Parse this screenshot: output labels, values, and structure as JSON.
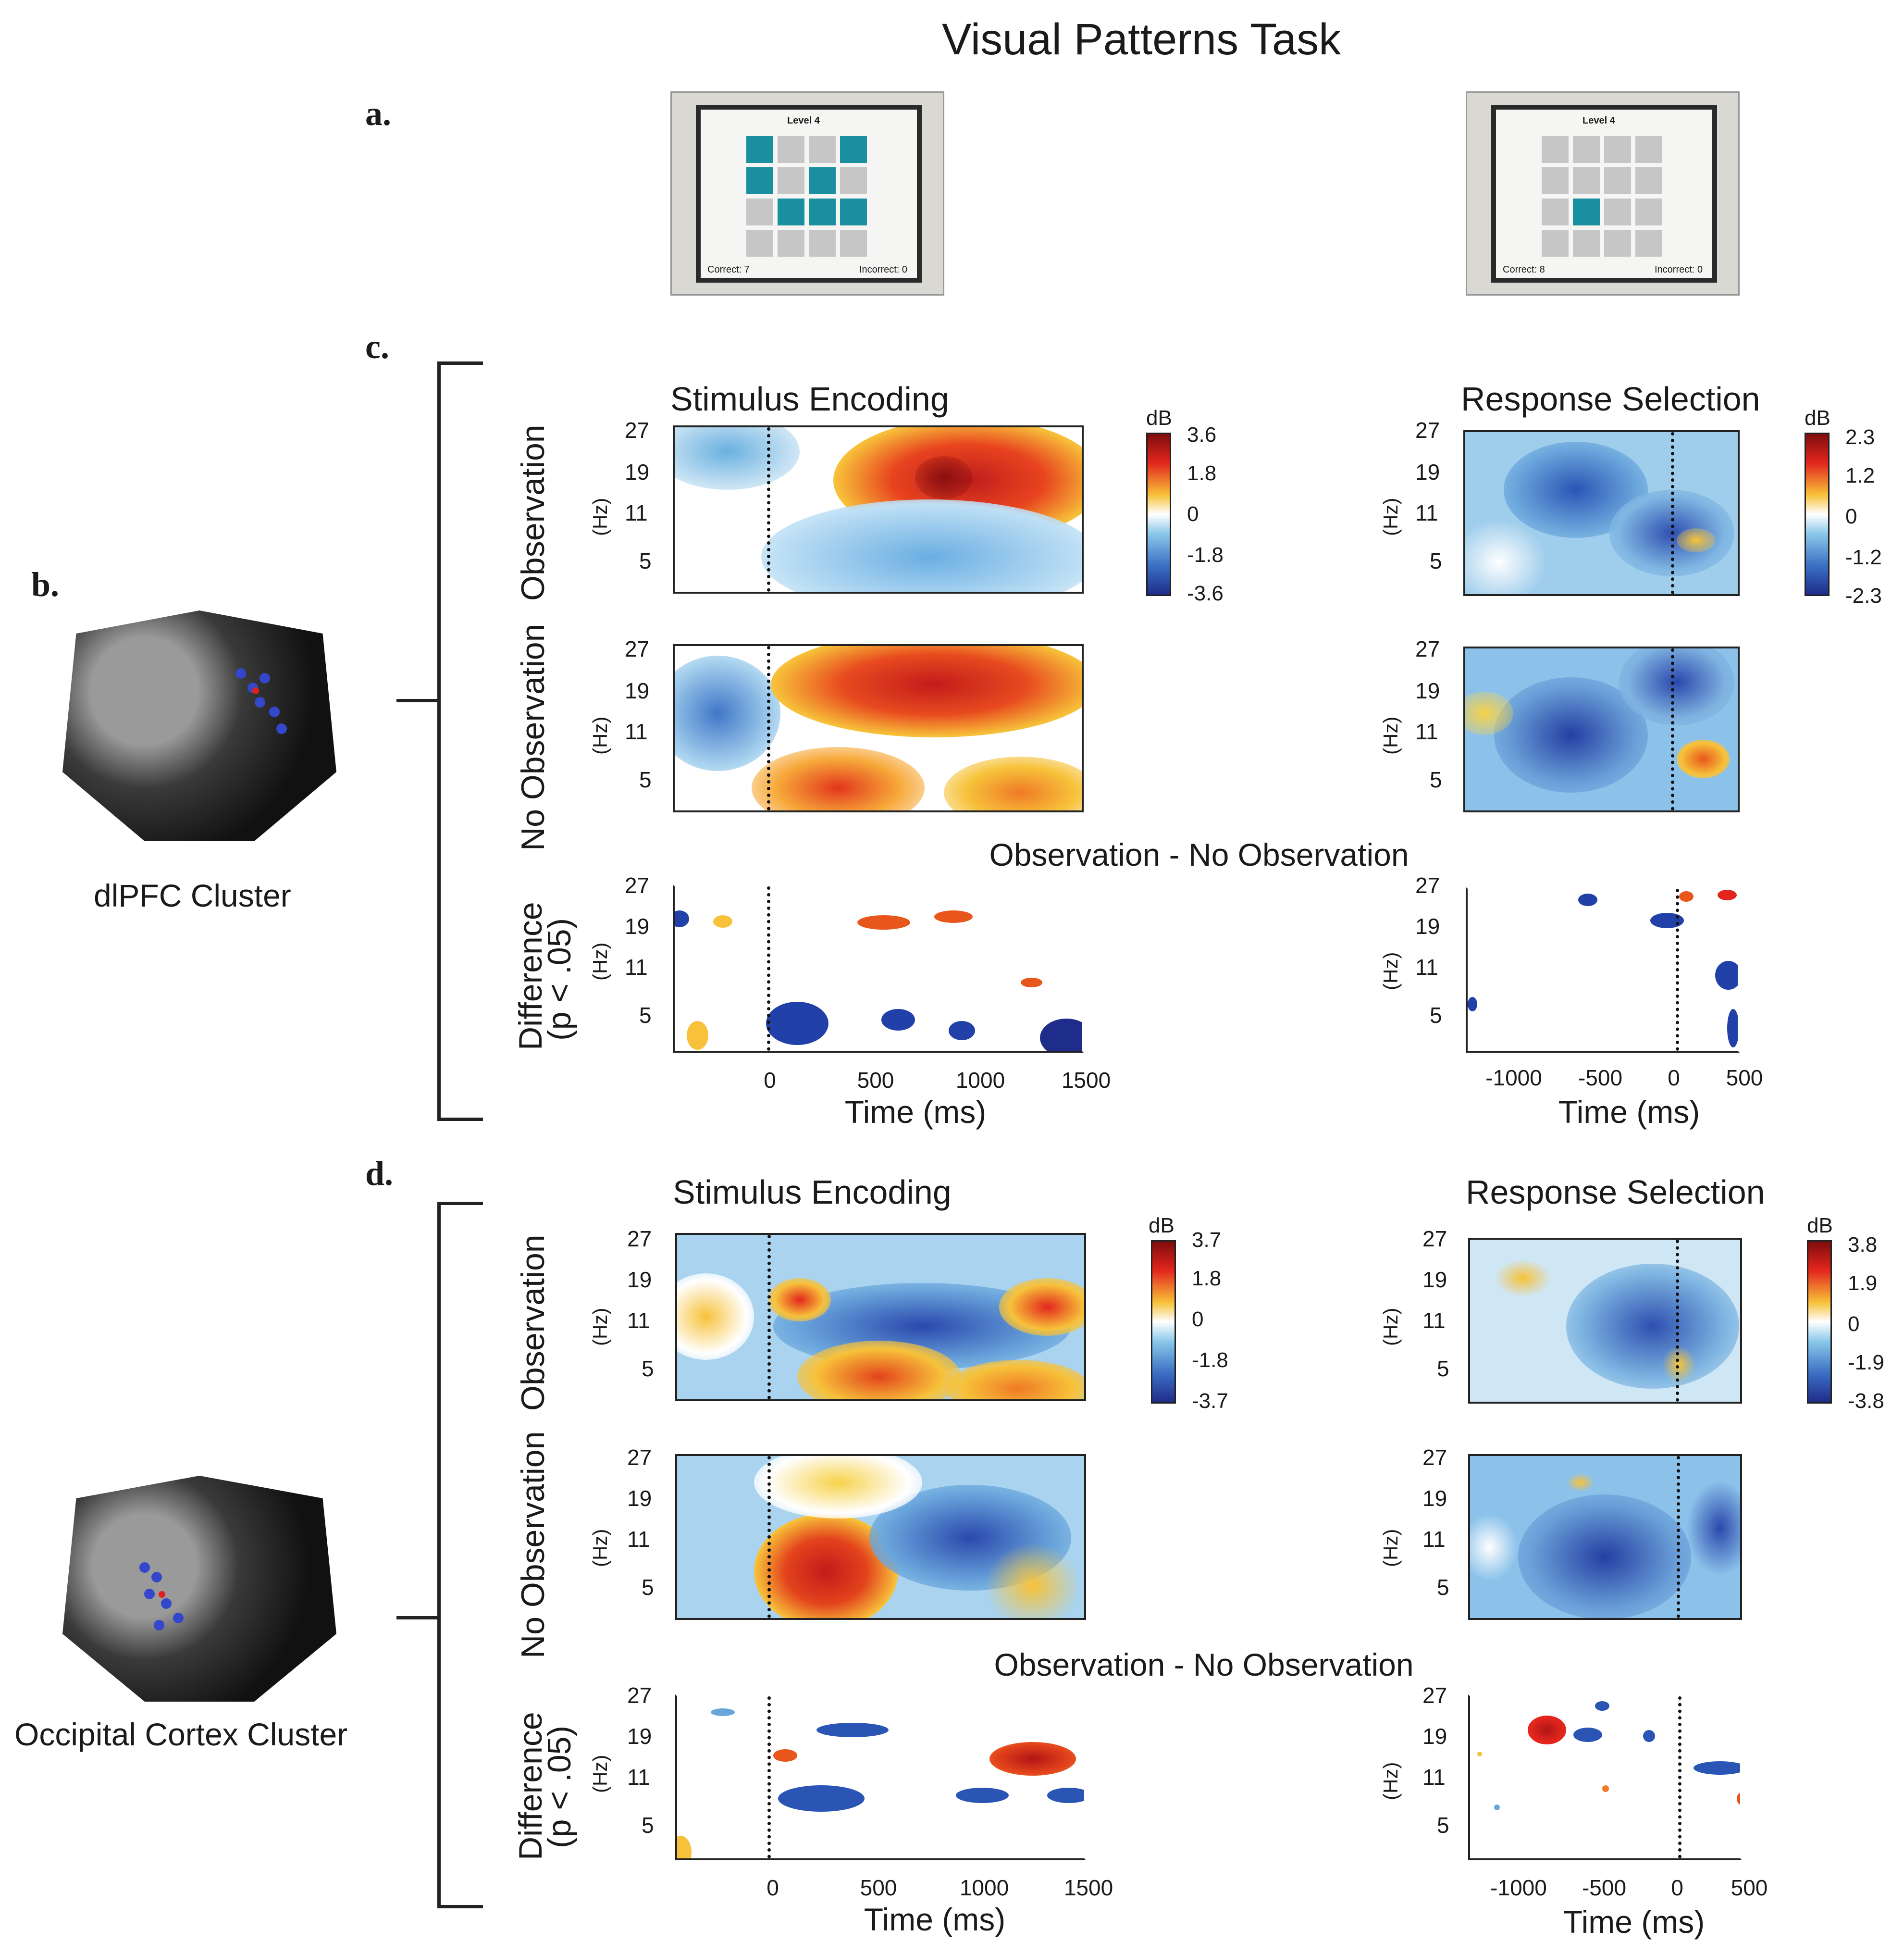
{
  "figure": {
    "title": "Visual Patterns Task",
    "panel_labels": [
      "a.",
      "b.",
      "c.",
      "d."
    ]
  },
  "task_screens": [
    {
      "level": "Level 4",
      "correct": "Correct: 7",
      "incorrect": "Incorrect: 0"
    },
    {
      "level": "Level 4",
      "correct": "Correct: 8",
      "incorrect": "Incorrect: 0"
    }
  ],
  "clusters": {
    "dlpfc": "dlPFC Cluster",
    "occipital": "Occipital Cortex Cluster"
  },
  "labels": {
    "stimulus_encoding": "Stimulus Encoding",
    "response_selection": "Response Selection",
    "observation": "Observation",
    "no_observation": "No Observation",
    "difference": "Difference",
    "p_value": "(p < .05)",
    "contrast": "Observation - No Observation",
    "hz": "(Hz)",
    "time_ms": "Time (ms)",
    "db": "dB"
  },
  "chart_data": {
    "type": "heatmap",
    "y_ticks": [
      "27",
      "19",
      "11",
      "5"
    ],
    "x_ticks_encoding": [
      "0",
      "500",
      "1000",
      "1500"
    ],
    "x_ticks_response": [
      "-1000",
      "-500",
      "0",
      "500"
    ],
    "colorbars": {
      "c_encoding": [
        "3.6",
        "1.8",
        "0",
        "-1.8",
        "-3.6"
      ],
      "c_response": [
        "2.3",
        "1.2",
        "0",
        "-1.2",
        "-2.3"
      ],
      "d_encoding": [
        "3.7",
        "1.8",
        "0",
        "-1.8",
        "-3.7"
      ],
      "d_response": [
        "3.8",
        "1.9",
        "0",
        "-1.9",
        "-3.8"
      ]
    },
    "colors": {
      "high": "#7f0d0d",
      "mid_high": "#e3261d",
      "warm": "#f7c23a",
      "zero": "#ffffff",
      "cool": "#8cc8ea",
      "mid_low": "#3b6fc4",
      "low": "#1f2d8a"
    }
  }
}
